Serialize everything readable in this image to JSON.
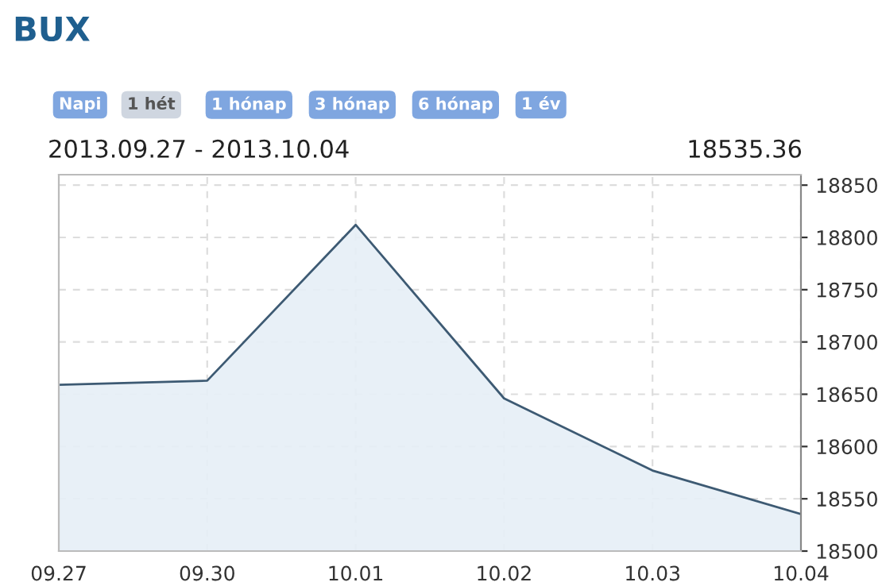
{
  "chart_data": {
    "type": "area",
    "title": "BUX",
    "subtitle": "2013.09.27 - 2013.10.04",
    "annotations": [
      "Napi",
      "1 hét",
      "1 hónap",
      "3 hónap",
      "6 hónap",
      "1 év",
      "18535.36"
    ],
    "categories": [
      "09.27",
      "09.30",
      "10.01",
      "10.02",
      "10.03",
      "10.04"
    ],
    "series": [
      {
        "color": "#3d5a73",
        "values": [
          18659,
          18663,
          18812,
          18646,
          18577,
          18535.36
        ]
      }
    ],
    "ylim": [
      18500,
      18860
    ],
    "yticks": [
      18500,
      18550,
      18600,
      18650,
      18700,
      18750,
      18800,
      18850
    ],
    "grid": true,
    "legend": false
  }
}
